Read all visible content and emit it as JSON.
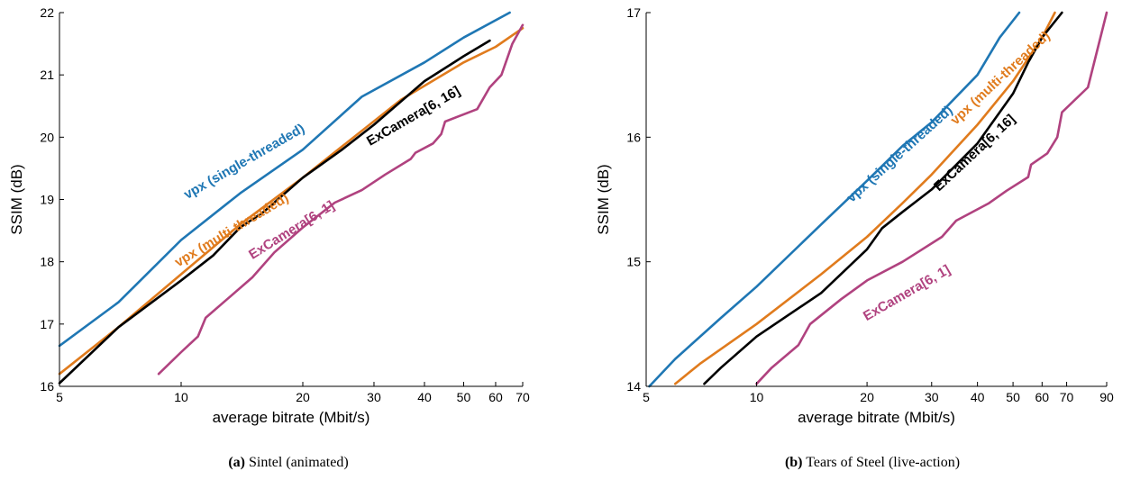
{
  "chart_data": [
    {
      "type": "line",
      "caption_letter": "(a)",
      "caption_text": "Sintel (animated)",
      "xlabel": "average bitrate (Mbit/s)",
      "ylabel": "SSIM (dB)",
      "xscale": "log",
      "xlim": [
        5,
        70
      ],
      "ylim": [
        16,
        22
      ],
      "xticks": [
        5,
        10,
        20,
        30,
        40,
        50,
        60,
        70
      ],
      "yticks": [
        16,
        17,
        18,
        19,
        20,
        21,
        22
      ],
      "grid": false,
      "series": [
        {
          "name": "vpx (single-threaded)",
          "color": "#1f77b4",
          "points": [
            [
              5,
              16.65
            ],
            [
              7,
              17.35
            ],
            [
              10,
              18.35
            ],
            [
              14,
              19.1
            ],
            [
              20,
              19.8
            ],
            [
              28,
              20.65
            ],
            [
              40,
              21.2
            ],
            [
              50,
              21.6
            ],
            [
              65,
              22.0
            ]
          ]
        },
        {
          "name": "vpx (multi-threaded)",
          "color": "#e07b1d",
          "points": [
            [
              5,
              16.2
            ],
            [
              7,
              16.95
            ],
            [
              10,
              17.8
            ],
            [
              14,
              18.6
            ],
            [
              20,
              19.35
            ],
            [
              25,
              19.85
            ],
            [
              35,
              20.6
            ],
            [
              50,
              21.2
            ],
            [
              60,
              21.45
            ],
            [
              70,
              21.75
            ]
          ]
        },
        {
          "name": "ExCamera[6, 16]",
          "color": "#000000",
          "points": [
            [
              5,
              16.05
            ],
            [
              7,
              16.95
            ],
            [
              10,
              17.7
            ],
            [
              12,
              18.1
            ],
            [
              14,
              18.55
            ],
            [
              16,
              18.8
            ],
            [
              20,
              19.35
            ],
            [
              25,
              19.8
            ],
            [
              30,
              20.2
            ],
            [
              40,
              20.9
            ],
            [
              50,
              21.3
            ],
            [
              58,
              21.55
            ]
          ]
        },
        {
          "name": "ExCamera[6, 1]",
          "color": "#b0427f",
          "points": [
            [
              8.8,
              16.2
            ],
            [
              10,
              16.55
            ],
            [
              11,
              16.8
            ],
            [
              11.5,
              17.1
            ],
            [
              13,
              17.4
            ],
            [
              15,
              17.75
            ],
            [
              17,
              18.15
            ],
            [
              20,
              18.55
            ],
            [
              24,
              18.95
            ],
            [
              28,
              19.15
            ],
            [
              32,
              19.4
            ],
            [
              37,
              19.65
            ],
            [
              38,
              19.75
            ],
            [
              42,
              19.9
            ],
            [
              44,
              20.05
            ],
            [
              45,
              20.25
            ],
            [
              54,
              20.45
            ],
            [
              58,
              20.8
            ],
            [
              62,
              21.0
            ],
            [
              66,
              21.5
            ],
            [
              70,
              21.8
            ]
          ]
        }
      ]
    },
    {
      "type": "line",
      "caption_letter": "(b)",
      "caption_text": "Tears of Steel (live-action)",
      "xlabel": "average bitrate (Mbit/s)",
      "ylabel": "SSIM (dB)",
      "xscale": "log",
      "xlim": [
        5,
        90
      ],
      "ylim": [
        14,
        17
      ],
      "xticks": [
        5,
        10,
        20,
        30,
        40,
        50,
        60,
        70,
        90
      ],
      "yticks": [
        14,
        15,
        16,
        17
      ],
      "grid": false,
      "series": [
        {
          "name": "vpx (single-threaded)",
          "color": "#1f77b4",
          "points": [
            [
              5.1,
              14.0
            ],
            [
              6,
              14.22
            ],
            [
              8,
              14.55
            ],
            [
              10,
              14.8
            ],
            [
              15,
              15.3
            ],
            [
              20,
              15.65
            ],
            [
              25,
              15.93
            ],
            [
              30,
              16.12
            ],
            [
              40,
              16.5
            ],
            [
              46,
              16.8
            ],
            [
              52,
              17.0
            ]
          ]
        },
        {
          "name": "vpx (multi-threaded)",
          "color": "#e07b1d",
          "points": [
            [
              6,
              14.02
            ],
            [
              7,
              14.18
            ],
            [
              10,
              14.5
            ],
            [
              15,
              14.9
            ],
            [
              20,
              15.2
            ],
            [
              25,
              15.47
            ],
            [
              30,
              15.7
            ],
            [
              40,
              16.1
            ],
            [
              50,
              16.45
            ],
            [
              60,
              16.8
            ],
            [
              65,
              17.0
            ]
          ]
        },
        {
          "name": "ExCamera[6, 16]",
          "color": "#000000",
          "points": [
            [
              7.2,
              14.02
            ],
            [
              8,
              14.15
            ],
            [
              10,
              14.4
            ],
            [
              15,
              14.75
            ],
            [
              20,
              15.1
            ],
            [
              22,
              15.27
            ],
            [
              25,
              15.4
            ],
            [
              30,
              15.58
            ],
            [
              40,
              15.95
            ],
            [
              50,
              16.35
            ],
            [
              55,
              16.6
            ],
            [
              60,
              16.8
            ],
            [
              68,
              17.0
            ]
          ]
        },
        {
          "name": "ExCamera[6, 1]",
          "color": "#b0427f",
          "points": [
            [
              10,
              14.02
            ],
            [
              11,
              14.15
            ],
            [
              13,
              14.33
            ],
            [
              14,
              14.5
            ],
            [
              17,
              14.7
            ],
            [
              20,
              14.85
            ],
            [
              25,
              15.0
            ],
            [
              32,
              15.2
            ],
            [
              35,
              15.33
            ],
            [
              43,
              15.47
            ],
            [
              48,
              15.57
            ],
            [
              55,
              15.68
            ],
            [
              56,
              15.78
            ],
            [
              62,
              15.87
            ],
            [
              66,
              16.0
            ],
            [
              68,
              16.2
            ],
            [
              80,
              16.4
            ],
            [
              90,
              17.0
            ]
          ]
        }
      ]
    }
  ]
}
